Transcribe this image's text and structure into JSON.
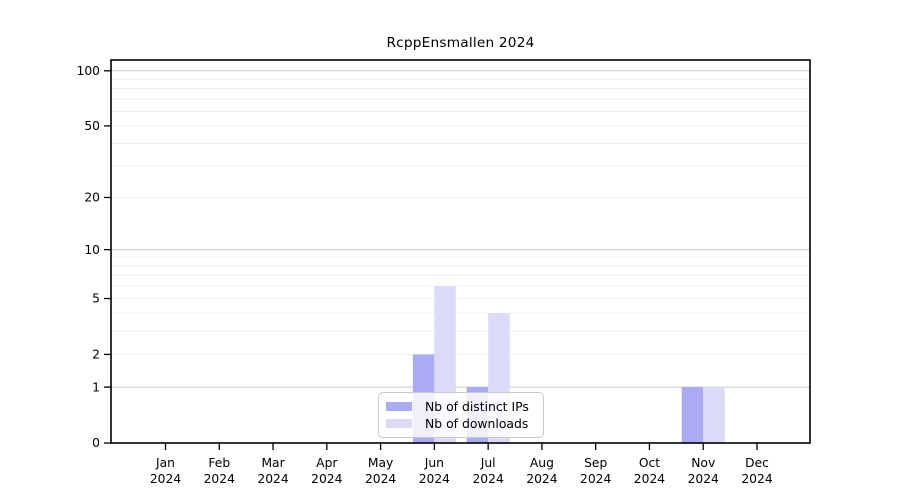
{
  "chart_data": {
    "type": "bar",
    "title": "RcppEnsmallen 2024",
    "x_tick_labels": [
      [
        "Jan",
        "2024"
      ],
      [
        "Feb",
        "2024"
      ],
      [
        "Mar",
        "2024"
      ],
      [
        "Apr",
        "2024"
      ],
      [
        "May",
        "2024"
      ],
      [
        "Jun",
        "2024"
      ],
      [
        "Jul",
        "2024"
      ],
      [
        "Aug",
        "2024"
      ],
      [
        "Sep",
        "2024"
      ],
      [
        "Oct",
        "2024"
      ],
      [
        "Nov",
        "2024"
      ],
      [
        "Dec",
        "2024"
      ]
    ],
    "series": [
      {
        "name": "Nb of distinct IPs",
        "color": "#aaaaf5",
        "values": [
          0,
          0,
          0,
          0,
          0,
          2,
          1,
          0,
          0,
          0,
          1,
          0
        ]
      },
      {
        "name": "Nb of downloads",
        "color": "#dbdbf8",
        "values": [
          0,
          0,
          0,
          0,
          0,
          6,
          4,
          0,
          0,
          0,
          1,
          0
        ]
      }
    ],
    "y_ticks": [
      0,
      1,
      2,
      5,
      10,
      20,
      50,
      100
    ],
    "y_scale": "log1p",
    "y_max_visible": 117,
    "grid": {
      "major": [
        1,
        10,
        100
      ],
      "minor": [
        2,
        3,
        4,
        5,
        6,
        7,
        8,
        9,
        20,
        30,
        40,
        50,
        60,
        70,
        80,
        90
      ]
    },
    "colors": {
      "major_grid": "#c7c7c7",
      "minor_grid": "#efefef",
      "axis": "#000000"
    },
    "legend_position": "bottom-center-inside",
    "xlabel": "",
    "ylabel": ""
  }
}
